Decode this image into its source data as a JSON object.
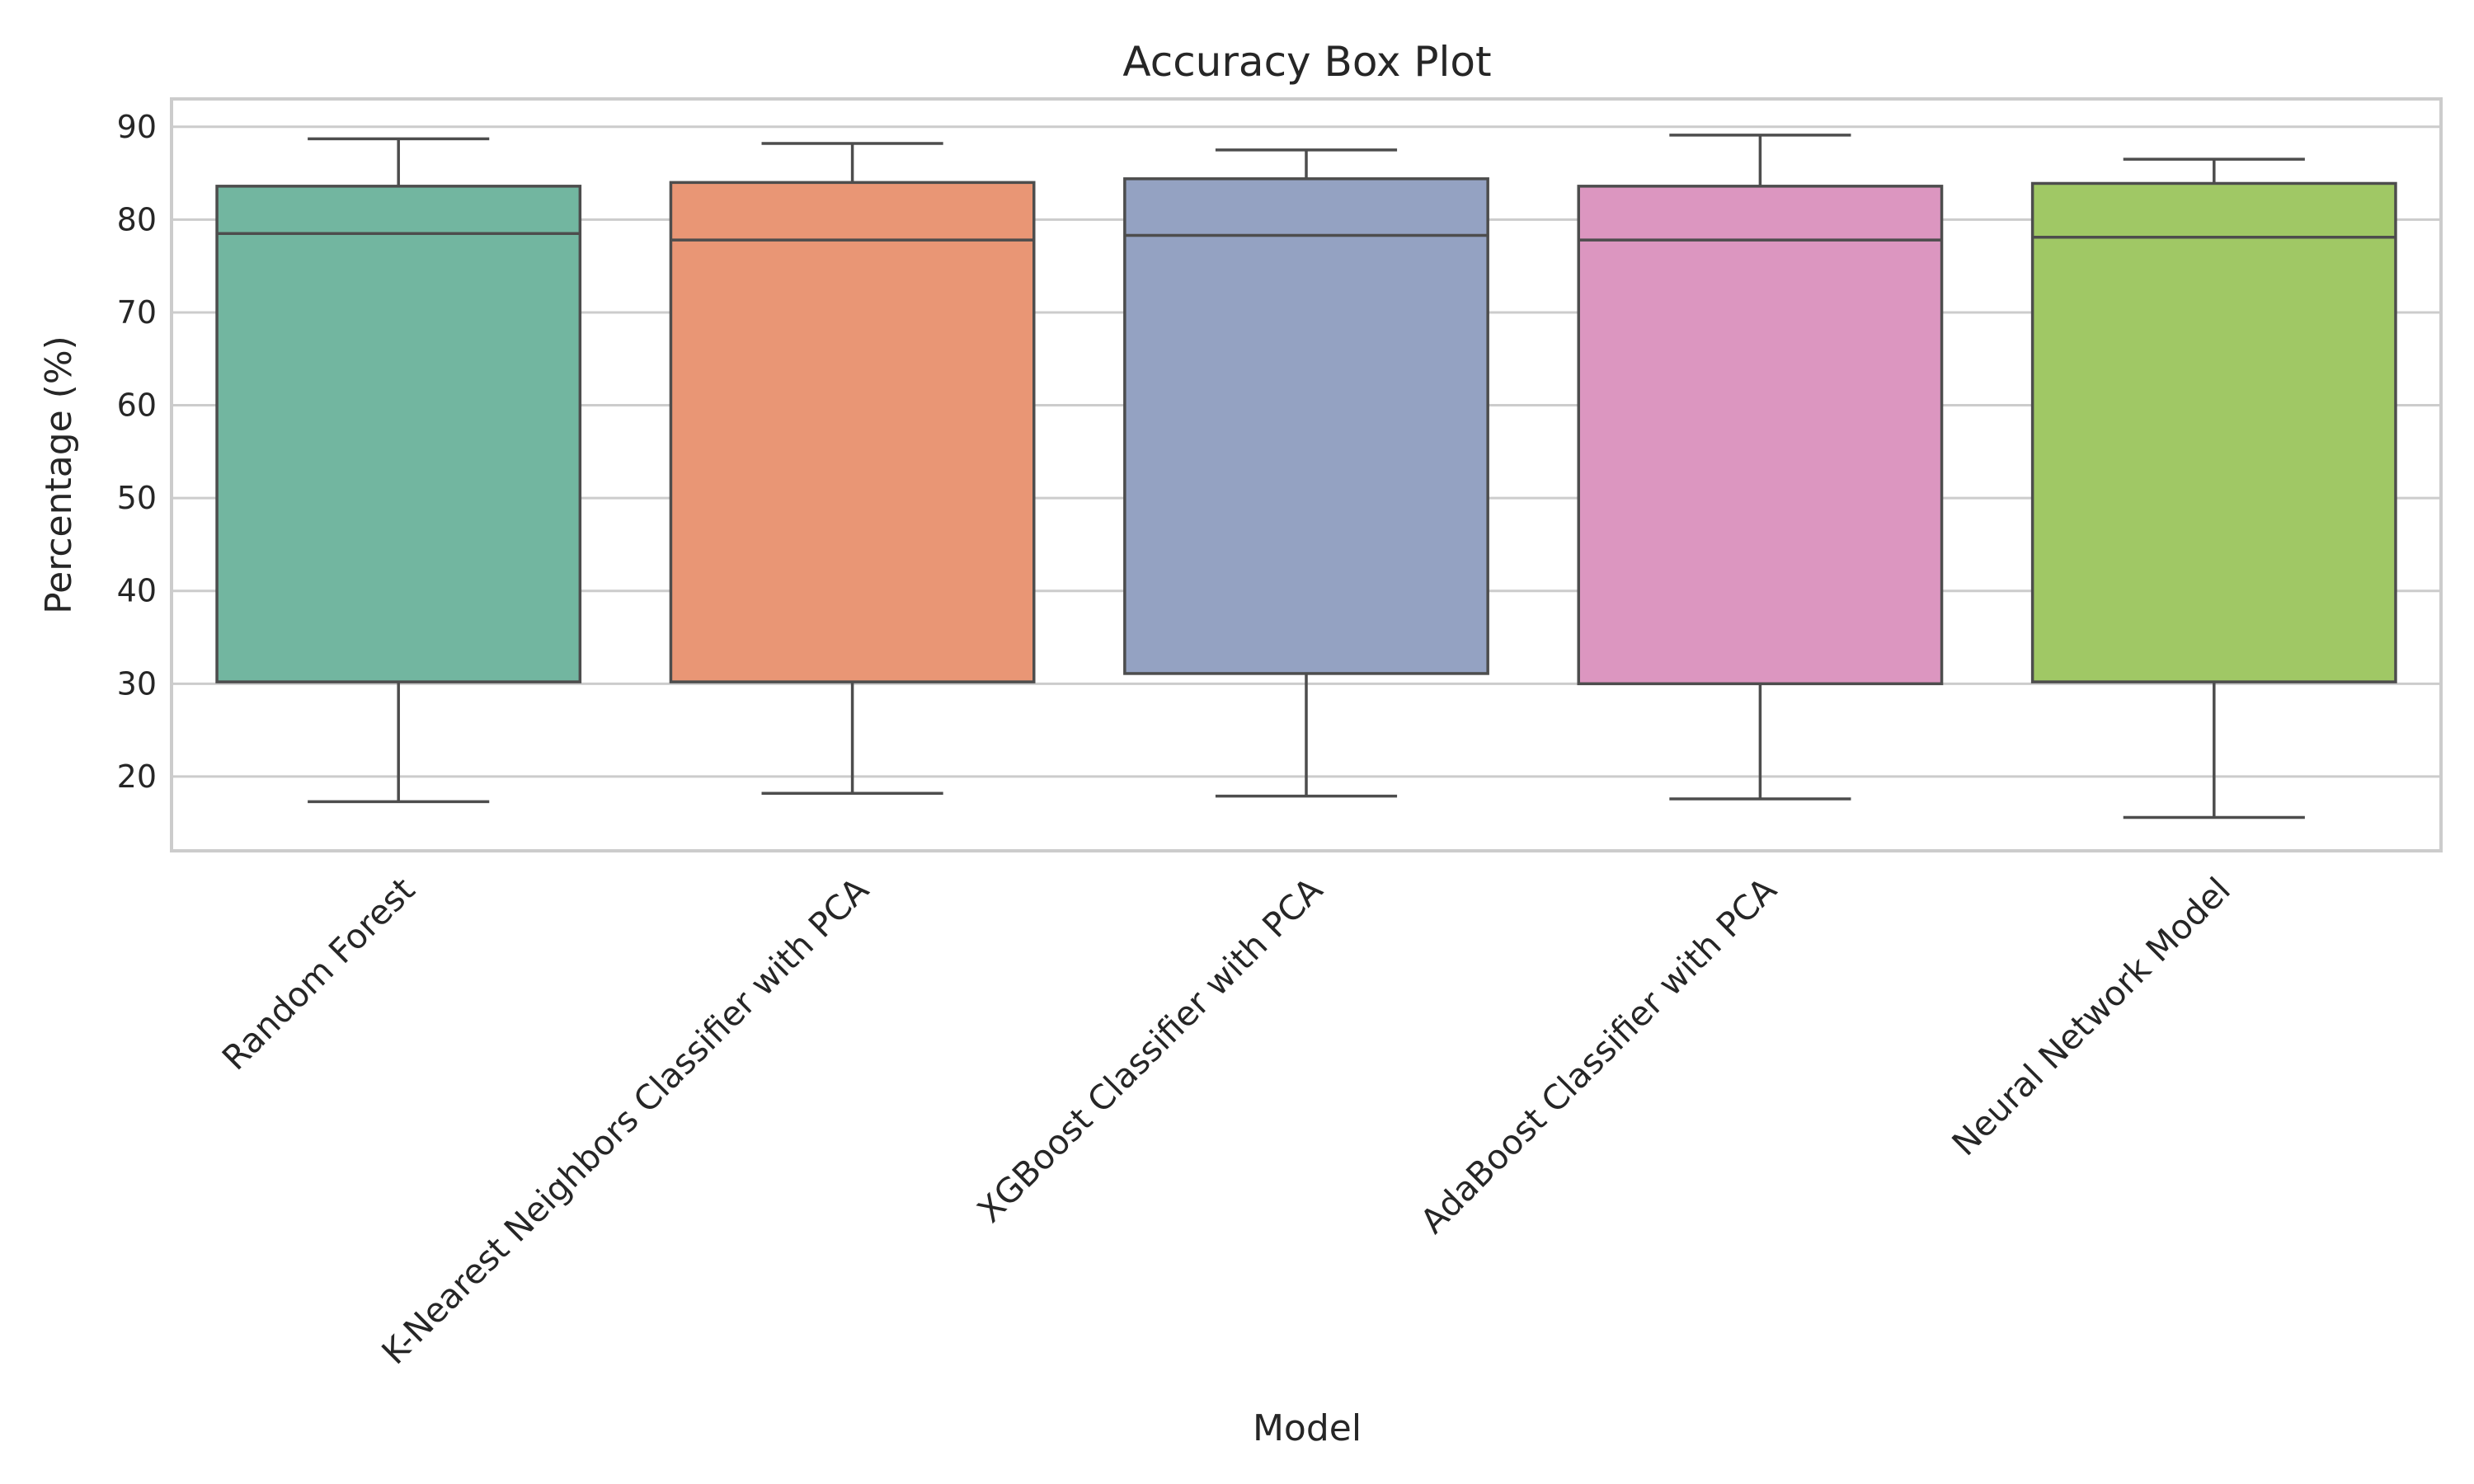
{
  "chart_data": {
    "type": "box",
    "title": "Accuracy Box Plot",
    "xlabel": "Model",
    "ylabel": "Percentage (%)",
    "ylim": [
      12,
      93
    ],
    "yticks": [
      20,
      30,
      40,
      50,
      60,
      70,
      80,
      90
    ],
    "grid": true,
    "legend": "none",
    "categories": [
      "Random Forest",
      "K-Nearest Neighbors Classifier with PCA",
      "XGBoost Classifier with PCA",
      "AdaBoost Classifier with PCA",
      "Neural Network Model"
    ],
    "boxes": [
      {
        "whisker_low": 17.3,
        "q1": 30.2,
        "median": 78.5,
        "q3": 83.6,
        "whisker_high": 88.7,
        "color": "#72b6a0"
      },
      {
        "whisker_low": 18.2,
        "q1": 30.2,
        "median": 77.8,
        "q3": 84.0,
        "whisker_high": 88.2,
        "color": "#e99675"
      },
      {
        "whisker_low": 17.9,
        "q1": 31.1,
        "median": 78.3,
        "q3": 84.4,
        "whisker_high": 87.5,
        "color": "#94a2c2"
      },
      {
        "whisker_low": 17.6,
        "q1": 30.0,
        "median": 77.8,
        "q3": 83.6,
        "whisker_high": 89.1,
        "color": "#dc96c0"
      },
      {
        "whisker_low": 15.6,
        "q1": 30.2,
        "median": 78.1,
        "q3": 83.9,
        "whisker_high": 86.5,
        "color": "#a0c865"
      }
    ]
  }
}
